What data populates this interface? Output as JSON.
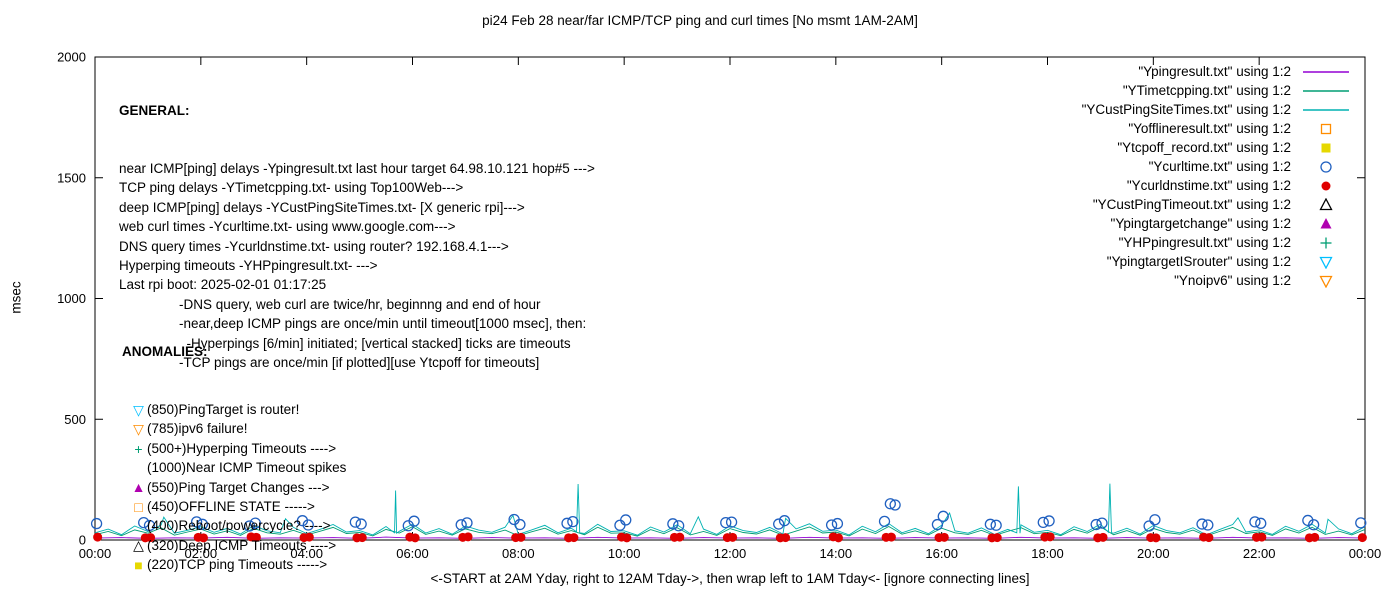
{
  "title": "pi24 Feb 28  near/far ICMP/TCP ping and curl times [No msmt 1AM-2AM]",
  "ylabel": "msec",
  "xlabel": "<-START at 2AM Yday, right to 12AM Tday->, then wrap left to 1AM Tday<- [ignore connecting lines]",
  "general": {
    "heading": "GENERAL:",
    "lines": [
      "near ICMP[ping] delays -Ypingresult.txt last hour target 64.98.10.121 hop#5 --->",
      "TCP ping delays -YTimetcpping.txt- using Top100Web--->",
      "deep ICMP[ping] delays -YCustPingSiteTimes.txt- [X generic rpi]--->",
      "web curl times -Ycurltime.txt- using www.google.com--->",
      "DNS query times -Ycurldnstime.txt- using router? 192.168.4.1--->",
      "Hyperping timeouts -YHPpingresult.txt- --->",
      "Last rpi boot: 2025-02-01 01:17:25",
      "                -DNS query, web curl are twice/hr, beginnng and end of hour",
      "                -near,deep ICMP pings are once/min until timeout[1000 msec], then:",
      "                  -Hyperpings [6/min] initiated; [vertical stacked] ticks are timeouts",
      "                -TCP pings are once/min [if plotted][use Ytcpoff for timeouts]"
    ]
  },
  "anomalies": {
    "heading": "ANOMALIES:",
    "items": [
      {
        "icon": "triangle-down-open",
        "color": "#00bfff",
        "text": "(850)PingTarget is router!"
      },
      {
        "icon": "triangle-down-open",
        "color": "#ff8c00",
        "text": "(785)ipv6 failure!"
      },
      {
        "icon": "plus",
        "color": "#009e73",
        "text": "(500+)Hyperping Timeouts ---->"
      },
      {
        "icon": "none",
        "color": "",
        "text": "(1000)Near ICMP Timeout spikes"
      },
      {
        "icon": "triangle-filled",
        "color": "#b000b0",
        "text": "(550)Ping Target Changes --->"
      },
      {
        "icon": "square-open",
        "color": "#ff8c00",
        "text": "(450)OFFLINE STATE ----->"
      },
      {
        "icon": "none",
        "color": "",
        "text": "(400)Reboot/powercycle? ---->"
      },
      {
        "icon": "triangle-open",
        "color": "#000000",
        "text": "(320)Deep ICMP Timeouts ---->"
      },
      {
        "icon": "square-filled",
        "color": "#e6d800",
        "text": "(220)TCP ping Timeouts ----->"
      }
    ]
  },
  "chart_data": {
    "type": "line",
    "title": "pi24 Feb 28  near/far ICMP/TCP ping and curl times [No msmt 1AM-2AM]",
    "xlabel": "<-START at 2AM Yday, right to 12AM Tday->, then wrap left to 1AM Tday<- [ignore connecting lines]",
    "ylabel": "msec",
    "xlim": [
      0,
      24
    ],
    "ylim": [
      0,
      2000
    ],
    "grid": false,
    "legend_position": "top-right",
    "xticks": {
      "positions": [
        0,
        2,
        4,
        6,
        8,
        10,
        12,
        14,
        16,
        18,
        20,
        22,
        24
      ],
      "labels": [
        "00:00",
        "02:00",
        "04:00",
        "06:00",
        "08:00",
        "10:00",
        "12:00",
        "14:00",
        "16:00",
        "18:00",
        "20:00",
        "22:00",
        "00:00"
      ]
    },
    "yticks": [
      0,
      500,
      1000,
      1500,
      2000
    ],
    "series": [
      {
        "id": "Ypingresult",
        "name": "\"Ypingresult.txt\" using 1:2",
        "style": "line",
        "color": "#9400d3",
        "points": [],
        "sampled": {
          "x0": 0,
          "dx": 0.5,
          "values": [
            8,
            10,
            7,
            9,
            8,
            11,
            7,
            9,
            8,
            10,
            7,
            12,
            8,
            9,
            7,
            10,
            8,
            9,
            7,
            11,
            8,
            9,
            7,
            10,
            8,
            9,
            7,
            11,
            8,
            9,
            7,
            10,
            8,
            9,
            7,
            11,
            8,
            9,
            7,
            10,
            8,
            9,
            7,
            11,
            8,
            9,
            7,
            10,
            8
          ]
        }
      },
      {
        "id": "YTimetcpping",
        "name": "\"YTimetcpping.txt\" using 1:2",
        "style": "line",
        "color": "#009e73",
        "points": [],
        "sampled": {
          "x0": 0,
          "dx": 0.25,
          "values": [
            22,
            35,
            18,
            42,
            28,
            50,
            20,
            33,
            45,
            25,
            38,
            19,
            48,
            30,
            24,
            40,
            21,
            36,
            52,
            27,
            31,
            17,
            44,
            29,
            55,
            23,
            37,
            20,
            46,
            32,
            26,
            41,
            18,
            34,
            49,
            24,
            39,
            22,
            53,
            28,
            30,
            16,
            43,
            26,
            51,
            21,
            35,
            19,
            47,
            31,
            25,
            42,
            20,
            37,
            54,
            29,
            33,
            17,
            45,
            27,
            56,
            24,
            38,
            21,
            49,
            30,
            23,
            40,
            19,
            36,
            51,
            26,
            32,
            18,
            44,
            28,
            55,
            22,
            39,
            20,
            48,
            31,
            24,
            41,
            17,
            35,
            52,
            27,
            34,
            19,
            46,
            29,
            53,
            23,
            37,
            21,
            44
          ]
        }
      },
      {
        "id": "YCustPingSiteTimes",
        "name": "\"YCustPingSiteTimes.txt\" using 1:2",
        "style": "line",
        "color": "#00b2b2",
        "points": [
          [
            1.3,
            95
          ],
          [
            3.6,
            88
          ],
          [
            5.66,
            30
          ],
          [
            5.68,
            205
          ],
          [
            5.7,
            28
          ],
          [
            7.9,
            102
          ],
          [
            9.1,
            34
          ],
          [
            9.13,
            232
          ],
          [
            9.16,
            30
          ],
          [
            11.4,
            96
          ],
          [
            13.05,
            90
          ],
          [
            16.15,
            112
          ],
          [
            17.42,
            30
          ],
          [
            17.45,
            222
          ],
          [
            17.48,
            28
          ],
          [
            19.15,
            32
          ],
          [
            19.18,
            233
          ],
          [
            19.21,
            30
          ],
          [
            21.6,
            92
          ],
          [
            23.3,
            86
          ]
        ],
        "sampled": {
          "x0": 0,
          "dx": 0.25,
          "values": [
            30,
            45,
            22,
            58,
            35,
            62,
            28,
            40,
            55,
            32,
            48,
            25,
            60,
            38,
            30,
            52,
            27,
            44,
            64,
            33,
            39,
            21,
            56,
            36,
            66,
            29,
            47,
            24,
            58,
            41,
            32,
            53,
            23,
            42,
            61,
            30,
            49,
            27,
            65,
            35,
            38,
            20,
            54,
            33,
            63,
            26,
            45,
            23,
            59,
            39,
            31,
            52,
            25,
            46,
            67,
            36,
            41,
            21,
            57,
            34,
            68,
            30,
            48,
            26,
            61,
            38,
            28,
            50,
            23,
            44,
            63,
            32,
            40,
            22,
            55,
            35,
            66,
            28,
            49,
            25,
            60,
            39,
            30,
            51,
            21,
            43,
            64,
            33,
            42,
            23,
            57,
            36,
            65,
            29,
            46,
            26,
            55
          ]
        }
      },
      {
        "id": "Yofflineresult",
        "name": "\"Yofflineresult.txt\" using 1:2",
        "style": "square-open",
        "color": "#ff8c00",
        "points": []
      },
      {
        "id": "Ytcpoff_record",
        "name": "\"Ytcpoff_record.txt\" using 1:2",
        "style": "square-filled",
        "color": "#e6d800",
        "points": []
      },
      {
        "id": "Ycurltime",
        "name": "\"Ycurltime.txt\" using 1:2",
        "style": "circle-open",
        "color": "#2060c0",
        "points": [
          [
            0.03,
            68
          ],
          [
            0.92,
            72
          ],
          [
            1.03,
            60
          ],
          [
            1.92,
            75
          ],
          [
            2.03,
            65
          ],
          [
            2.92,
            58
          ],
          [
            3.03,
            70
          ],
          [
            3.92,
            80
          ],
          [
            4.03,
            62
          ],
          [
            4.92,
            74
          ],
          [
            5.03,
            66
          ],
          [
            5.92,
            59
          ],
          [
            6.03,
            78
          ],
          [
            6.92,
            63
          ],
          [
            7.03,
            71
          ],
          [
            7.92,
            85
          ],
          [
            8.03,
            64
          ],
          [
            8.92,
            69
          ],
          [
            9.03,
            76
          ],
          [
            9.92,
            61
          ],
          [
            10.03,
            83
          ],
          [
            10.92,
            67
          ],
          [
            11.03,
            59
          ],
          [
            11.92,
            72
          ],
          [
            12.03,
            74
          ],
          [
            12.92,
            66
          ],
          [
            13.03,
            80
          ],
          [
            13.92,
            62
          ],
          [
            14.03,
            68
          ],
          [
            14.92,
            77
          ],
          [
            15.03,
            150
          ],
          [
            15.12,
            145
          ],
          [
            15.92,
            64
          ],
          [
            16.03,
            98
          ],
          [
            16.92,
            65
          ],
          [
            17.03,
            61
          ],
          [
            17.92,
            73
          ],
          [
            18.03,
            79
          ],
          [
            18.92,
            64
          ],
          [
            19.03,
            70
          ],
          [
            19.92,
            58
          ],
          [
            20.03,
            84
          ],
          [
            20.92,
            66
          ],
          [
            21.03,
            62
          ],
          [
            21.92,
            75
          ],
          [
            22.03,
            69
          ],
          [
            22.92,
            81
          ],
          [
            23.03,
            63
          ],
          [
            23.92,
            71
          ]
        ]
      },
      {
        "id": "Ycurldnstime",
        "name": "\"Ycurldnstime.txt\" using 1:2",
        "style": "circle-filled",
        "color": "#e00000",
        "points": [
          [
            0.05,
            12
          ],
          [
            0.95,
            9
          ],
          [
            1.05,
            10
          ],
          [
            1.95,
            11
          ],
          [
            2.05,
            9
          ],
          [
            2.95,
            13
          ],
          [
            3.05,
            11
          ],
          [
            3.95,
            10
          ],
          [
            4.05,
            12
          ],
          [
            4.95,
            9
          ],
          [
            5.05,
            10
          ],
          [
            5.95,
            12
          ],
          [
            6.05,
            9
          ],
          [
            6.95,
            11
          ],
          [
            7.05,
            13
          ],
          [
            7.95,
            10
          ],
          [
            8.05,
            11
          ],
          [
            8.95,
            9
          ],
          [
            9.05,
            10
          ],
          [
            9.95,
            12
          ],
          [
            10.05,
            9
          ],
          [
            10.95,
            11
          ],
          [
            11.05,
            12
          ],
          [
            11.95,
            10
          ],
          [
            12.05,
            11
          ],
          [
            12.95,
            9
          ],
          [
            13.05,
            10
          ],
          [
            13.95,
            13
          ],
          [
            14.05,
            9
          ],
          [
            14.95,
            11
          ],
          [
            15.05,
            12
          ],
          [
            15.95,
            10
          ],
          [
            16.05,
            11
          ],
          [
            16.95,
            9
          ],
          [
            17.05,
            10
          ],
          [
            17.95,
            12
          ],
          [
            18.05,
            13
          ],
          [
            18.95,
            9
          ],
          [
            19.05,
            11
          ],
          [
            19.95,
            10
          ],
          [
            20.05,
            9
          ],
          [
            20.95,
            12
          ],
          [
            21.05,
            10
          ],
          [
            21.95,
            11
          ],
          [
            22.05,
            12
          ],
          [
            22.95,
            9
          ],
          [
            23.05,
            11
          ],
          [
            23.95,
            10
          ]
        ]
      },
      {
        "id": "YCustPingTimeout",
        "name": "\"YCustPingTimeout.txt\" using 1:2",
        "style": "triangle-open",
        "color": "#000000",
        "points": []
      },
      {
        "id": "Ypingtargetchange",
        "name": "\"Ypingtargetchange\" using 1:2",
        "style": "triangle-filled",
        "color": "#b000b0",
        "points": []
      },
      {
        "id": "YHPpingresult",
        "name": "\"YHPpingresult.txt\" using 1:2",
        "style": "plus",
        "color": "#009e73",
        "points": []
      },
      {
        "id": "YpingtargetISrouter",
        "name": "\"YpingtargetISrouter\" using 1:2",
        "style": "triangle-down-open",
        "color": "#00bfff",
        "points": []
      },
      {
        "id": "Ynoipv6",
        "name": "\"Ynoipv6\" using 1:2",
        "style": "triangle-down-open",
        "color": "#ff8c00",
        "points": []
      }
    ]
  }
}
